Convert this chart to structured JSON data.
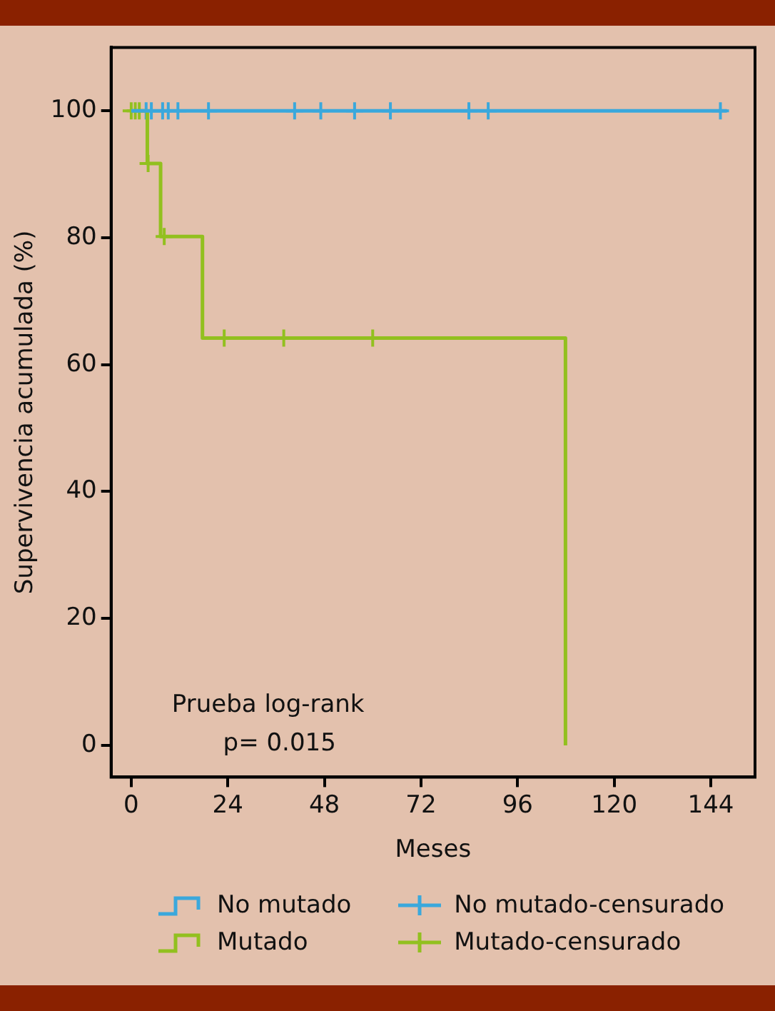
{
  "chart_data": {
    "type": "step",
    "xlabel": "Meses",
    "ylabel": "Supervivencia acumulada (%)",
    "annotations": [
      "Prueba log-rank",
      "p= 0.015"
    ],
    "xlim": [
      -5,
      155
    ],
    "xticks": [
      0,
      24,
      48,
      72,
      96,
      120,
      144
    ],
    "ylim": [
      -5,
      110
    ],
    "yticks": [
      0,
      20,
      40,
      60,
      80,
      100
    ],
    "grid": false,
    "legend": "bottom",
    "series": [
      {
        "name": "No mutado",
        "color": "#3aa8dc",
        "x": [
          0,
          148
        ],
        "values": [
          100,
          100
        ]
      },
      {
        "name": "Mutado",
        "color": "#92c01f",
        "x": [
          0,
          4,
          7.3,
          17.7,
          107.9
        ],
        "values": [
          100,
          91.7,
          80.2,
          64.2,
          0
        ]
      },
      {
        "name": "No mutado-censurado",
        "type": "scatter",
        "marker": "cross",
        "color": "#3aa8dc",
        "x": [
          3.7,
          5,
          7.8,
          9.2,
          11.6,
          19.2,
          40.6,
          47.1,
          55.5,
          64.4,
          83.9,
          88.7,
          146.4
        ],
        "values": [
          100,
          100,
          100,
          100,
          100,
          100,
          100,
          100,
          100,
          100,
          100,
          100,
          100
        ]
      },
      {
        "name": "Mutado-censurado",
        "type": "scatter",
        "marker": "cross",
        "color": "#92c01f",
        "x": [
          0,
          1,
          2,
          4.2,
          8.2,
          23.1,
          37.9,
          60
        ],
        "values": [
          100,
          100,
          100,
          91.7,
          80.2,
          64.2,
          64.2,
          64.2
        ]
      }
    ]
  }
}
